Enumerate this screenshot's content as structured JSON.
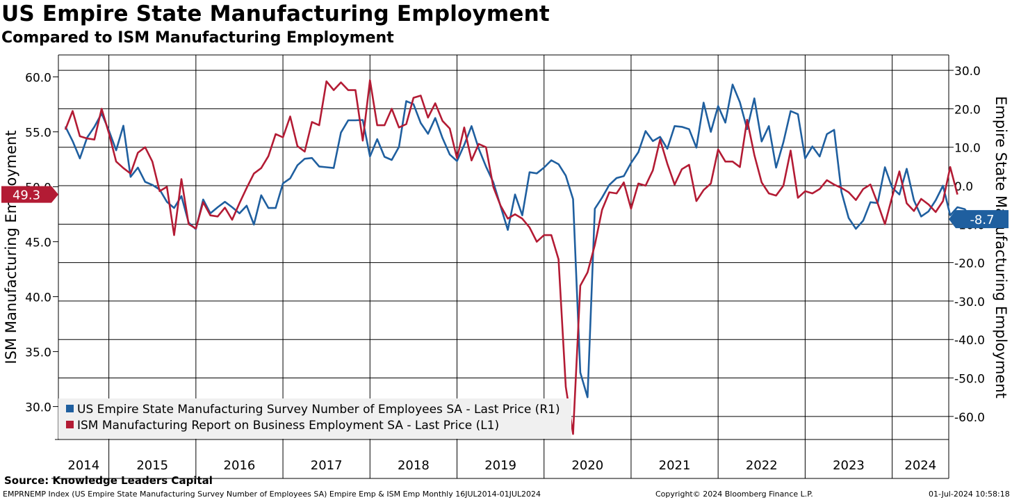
{
  "header": {
    "title": "US Empire State Manufacturing Employment",
    "subtitle": "Compared to ISM Manufacturing Employment"
  },
  "footer": {
    "source": "Source: Knowledge Leaders Capital",
    "index_info": "EMPRNEMP Index (US Empire State Manufacturing Survey Number of Employees SA) Empire Emp & ISM Emp  Monthly 16JUL2014-01JUL2024",
    "copyright": "Copyright© 2024 Bloomberg Finance L.P.",
    "timestamp": "01-Jul-2024 10:58:18"
  },
  "colors": {
    "empire": "#1f5f9f",
    "ism": "#b31b34",
    "legend_bg": "#f0f0f0"
  },
  "chart_data": {
    "type": "line",
    "title": "US Empire State Manufacturing Employment",
    "subtitle": "Compared to ISM Manufacturing Employment",
    "left_axis": {
      "label": "ISM Manufacturing Employment",
      "range": [
        27.0,
        62.0
      ],
      "ticks": [
        30.0,
        35.0,
        40.0,
        45.0,
        50.0,
        55.0,
        60.0
      ],
      "tick_labels": [
        "30.0",
        "35.0",
        "40.0",
        "45.0",
        "50.0",
        "55.0",
        "60.0"
      ]
    },
    "right_axis": {
      "label": "Empire State Manufacturing Employment",
      "range": [
        -66.0,
        34.0
      ],
      "ticks": [
        -60,
        -50,
        -40,
        -30,
        -20,
        -10,
        0,
        10,
        20,
        30
      ],
      "tick_labels": [
        "-60.0",
        "-50.0",
        "-40.0",
        "-30.0",
        "-20.0",
        "-10.0",
        "0.0",
        "10.0",
        "20.0",
        "30.0"
      ]
    },
    "x_axis": {
      "range": [
        2014.42,
        2024.65
      ],
      "year_labels": [
        "2014",
        "2015",
        "2016",
        "2017",
        "2018",
        "2019",
        "2020",
        "2021",
        "2022",
        "2023",
        "2024"
      ],
      "year_boundaries": [
        2015,
        2016,
        2017,
        2018,
        2019,
        2020,
        2021,
        2022,
        2023,
        2024
      ]
    },
    "grid": true,
    "legend_position": "bottom-left",
    "series": [
      {
        "name": "US Empire State Manufacturing Survey Number of Employees SA - Last Price (R1)",
        "axis": "right",
        "color": "#1f5f9f",
        "last_value_label": "-8.7",
        "start": 2014.5,
        "values": [
          15.4,
          11.6,
          7.1,
          12.5,
          15.3,
          18.8,
          14.4,
          9.2,
          15.6,
          2.3,
          4.7,
          1.0,
          0.2,
          -1.0,
          -4.2,
          -5.8,
          -2.7,
          -9.6,
          -11.3,
          -3.6,
          -7.2,
          -5.6,
          -4.2,
          -5.6,
          -7.2,
          -5.2,
          -10.1,
          -2.5,
          -5.8,
          -5.8,
          0.6,
          1.9,
          5.3,
          7.0,
          7.2,
          5.0,
          4.8,
          4.6,
          13.8,
          17.0,
          17.0,
          17.1,
          7.6,
          12.1,
          7.5,
          6.7,
          10.1,
          22.0,
          21.2,
          16.3,
          13.5,
          17.6,
          12.4,
          8.1,
          6.4,
          10.6,
          15.5,
          9.6,
          5.0,
          0.9,
          -5.3,
          -11.5,
          -2.3,
          -7.7,
          3.5,
          3.2,
          4.7,
          6.6,
          5.6,
          2.6,
          -3.5,
          -48.6,
          -55.0,
          -6.0,
          -3.1,
          0.2,
          2.0,
          2.5,
          5.9,
          8.7,
          14.2,
          11.6,
          12.7,
          9.6,
          15.5,
          15.3,
          14.7,
          9.9,
          21.6,
          14.0,
          20.7,
          16.4,
          26.3,
          21.7,
          14.7,
          22.7,
          11.5,
          15.5,
          4.7,
          11.3,
          19.4,
          18.6,
          7.1,
          10.2,
          7.6,
          13.4,
          14.5,
          -1.6,
          -8.4,
          -11.2,
          -9.1,
          -4.3,
          -4.5,
          4.8,
          -0.5,
          -2.3,
          4.4,
          -3.8,
          -8.0,
          -6.7,
          -3.8,
          0.0,
          -7.7,
          -5.6,
          -6.1,
          -8.7
        ]
      },
      {
        "name": "ISM Manufacturing Report on Business Employment SA - Last Price (L1)",
        "axis": "left",
        "color": "#b31b34",
        "last_value_label": "49.3",
        "start": 2014.5,
        "values": [
          55.2,
          56.9,
          54.6,
          54.4,
          54.3,
          57.1,
          54.9,
          52.3,
          51.7,
          51.2,
          53.1,
          53.6,
          52.3,
          49.6,
          50.0,
          45.6,
          50.7,
          46.6,
          46.2,
          48.6,
          47.4,
          47.3,
          48.1,
          47.0,
          48.5,
          49.9,
          51.2,
          51.7,
          52.8,
          54.8,
          54.5,
          56.4,
          53.7,
          53.2,
          55.9,
          55.6,
          59.6,
          58.8,
          59.5,
          58.8,
          58.8,
          54.2,
          59.7,
          55.6,
          55.6,
          57.1,
          55.4,
          55.7,
          58.1,
          58.3,
          56.3,
          57.6,
          56.0,
          55.3,
          52.6,
          55.4,
          52.4,
          53.9,
          53.6,
          50.0,
          48.3,
          47.1,
          47.5,
          47.1,
          46.3,
          45.0,
          45.6,
          45.6,
          43.4,
          31.8,
          27.5,
          41.0,
          42.2,
          44.7,
          47.9,
          49.5,
          49.4,
          50.4,
          48.0,
          50.3,
          50.1,
          51.5,
          54.3,
          52.1,
          50.2,
          51.6,
          52.0,
          48.7,
          49.7,
          50.3,
          53.4,
          52.3,
          52.3,
          51.8,
          56.1,
          52.9,
          50.4,
          49.4,
          49.2,
          50.1,
          53.3,
          49.0,
          49.6,
          49.4,
          49.8,
          50.6,
          50.2,
          49.9,
          49.5,
          48.8,
          49.8,
          50.2,
          48.5,
          46.6,
          49.1,
          51.4,
          48.5,
          47.8,
          48.9,
          48.4,
          47.7,
          48.7,
          51.8,
          49.3
        ]
      }
    ]
  }
}
